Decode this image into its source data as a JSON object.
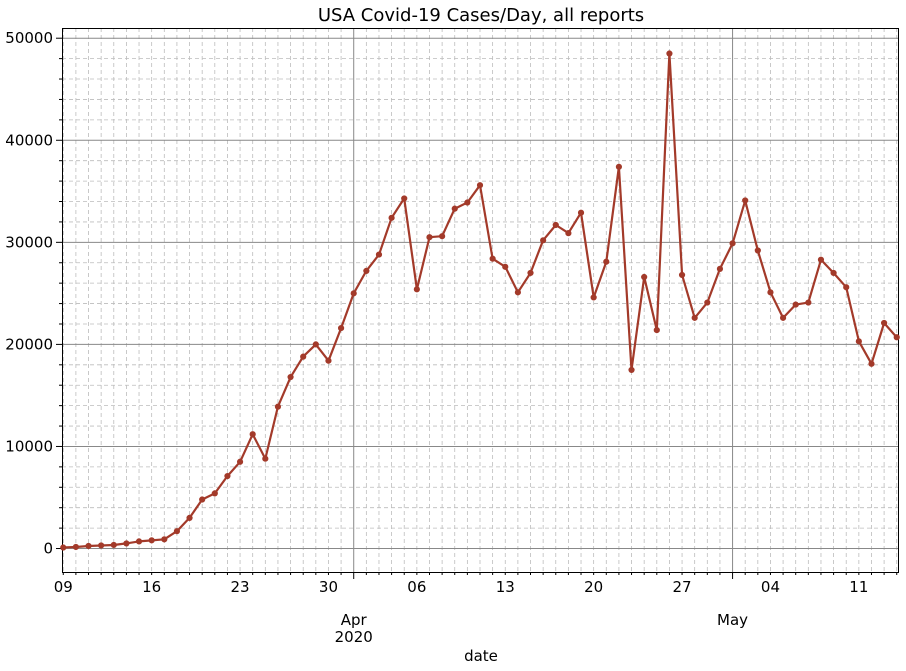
{
  "chart_data": {
    "type": "line",
    "title": "USA Covid-19 Cases/Day, all reports",
    "xlabel": "date",
    "ylabel": "",
    "x_start": "2020-03-09",
    "x_end": "2020-05-14",
    "ylim": [
      -2300,
      51000
    ],
    "grid": {
      "major": true,
      "minor": true
    },
    "legend": "none",
    "series": [
      {
        "color": "#a33a2a",
        "x": [
          "2020-03-09",
          "2020-03-10",
          "2020-03-11",
          "2020-03-12",
          "2020-03-13",
          "2020-03-14",
          "2020-03-15",
          "2020-03-16",
          "2020-03-17",
          "2020-03-18",
          "2020-03-19",
          "2020-03-20",
          "2020-03-21",
          "2020-03-22",
          "2020-03-23",
          "2020-03-24",
          "2020-03-25",
          "2020-03-26",
          "2020-03-27",
          "2020-03-28",
          "2020-03-29",
          "2020-03-30",
          "2020-03-31",
          "2020-04-01",
          "2020-04-02",
          "2020-04-03",
          "2020-04-04",
          "2020-04-05",
          "2020-04-06",
          "2020-04-07",
          "2020-04-08",
          "2020-04-09",
          "2020-04-10",
          "2020-04-11",
          "2020-04-12",
          "2020-04-13",
          "2020-04-14",
          "2020-04-15",
          "2020-04-16",
          "2020-04-17",
          "2020-04-18",
          "2020-04-19",
          "2020-04-20",
          "2020-04-21",
          "2020-04-22",
          "2020-04-23",
          "2020-04-24",
          "2020-04-25",
          "2020-04-26",
          "2020-04-27",
          "2020-04-28",
          "2020-04-29",
          "2020-04-30",
          "2020-05-01",
          "2020-05-02",
          "2020-05-03",
          "2020-05-04",
          "2020-05-05",
          "2020-05-06",
          "2020-05-07",
          "2020-05-08",
          "2020-05-09",
          "2020-05-10",
          "2020-05-11",
          "2020-05-12",
          "2020-05-13",
          "2020-05-14"
        ],
        "y": [
          100,
          150,
          250,
          300,
          350,
          500,
          700,
          800,
          900,
          1700,
          3000,
          4800,
          5400,
          7100,
          8500,
          11200,
          8800,
          13900,
          16800,
          18800,
          20000,
          18400,
          21600,
          25000,
          27200,
          28800,
          32400,
          34300,
          25400,
          30500,
          30600,
          33300,
          33900,
          35600,
          28400,
          27600,
          25100,
          27000,
          30200,
          31700,
          30900,
          32900,
          24600,
          28100,
          37400,
          17500,
          26600,
          21400,
          48500,
          26800,
          22600,
          24100,
          27400,
          29900,
          34100,
          29200,
          25100,
          22600,
          23900,
          24100,
          28300,
          27000,
          25600,
          20300,
          18100,
          22100,
          20700
        ]
      }
    ],
    "x_tick_labels": [
      "09",
      "16",
      "23",
      "30",
      "06",
      "13",
      "20",
      "27",
      "04",
      "11"
    ],
    "x_month_labels": [
      "Apr",
      "May"
    ],
    "x_year_label": "2020",
    "y_tick_labels": [
      "0",
      "10000",
      "20000",
      "30000",
      "40000",
      "50000"
    ]
  }
}
